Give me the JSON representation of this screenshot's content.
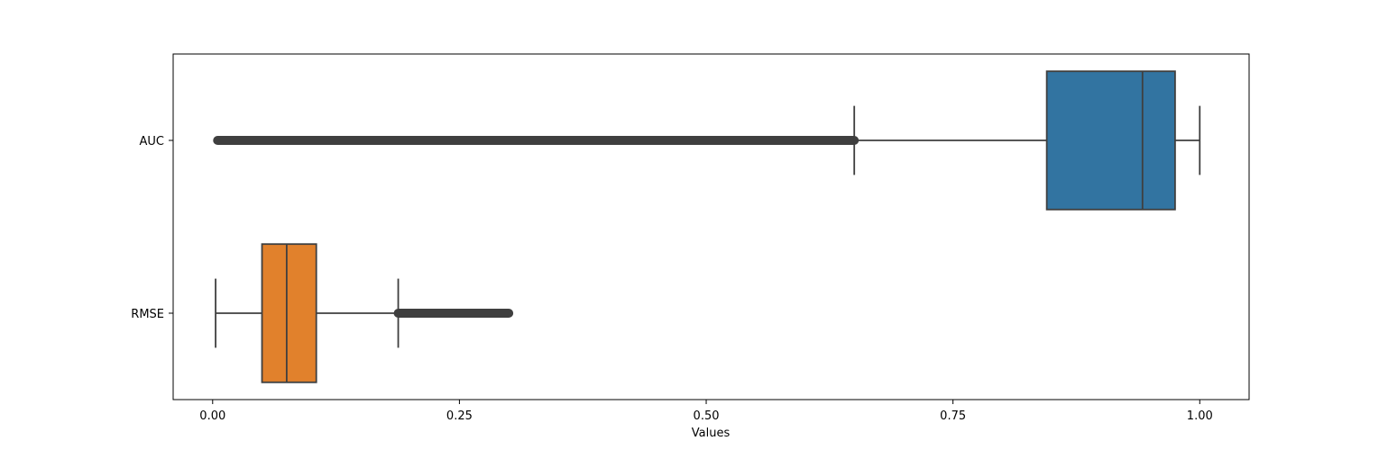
{
  "chart_data": {
    "type": "boxplot",
    "orientation": "horizontal",
    "title": "",
    "xlabel": "Values",
    "ylabel": "",
    "xlim": [
      -0.04,
      1.05
    ],
    "xticks": [
      0.0,
      0.25,
      0.5,
      0.75,
      1.0
    ],
    "xtick_labels": [
      "0.00",
      "0.25",
      "0.50",
      "0.75",
      "1.00"
    ],
    "grid": false,
    "categories": [
      "AUC",
      "RMSE"
    ],
    "boxes": [
      {
        "category": "AUC",
        "whisker_low": 0.65,
        "q1": 0.845,
        "median": 0.942,
        "q3": 0.975,
        "whisker_high": 1.0,
        "outlier_range": [
          0.005,
          0.65
        ],
        "color": "#3274a1"
      },
      {
        "category": "RMSE",
        "whisker_low": 0.003,
        "q1": 0.05,
        "median": 0.075,
        "q3": 0.105,
        "whisker_high": 0.188,
        "outlier_range": [
          0.188,
          0.3
        ],
        "color": "#e1812c"
      }
    ],
    "edge_color": "#3f3f3f"
  }
}
